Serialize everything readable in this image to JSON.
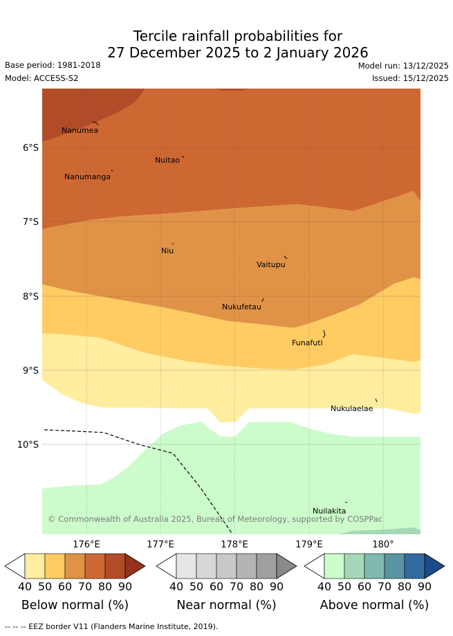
{
  "title": {
    "line1": "Tercile rainfall probabilities for",
    "line2": "27 December 2025 to 2 January 2026"
  },
  "meta": {
    "base_period": "Base period: 1981-2018",
    "model": "Model: ACCESS-S2",
    "model_run": "Model run: 13/12/2025",
    "issued": "Issued: 15/12/2025"
  },
  "map": {
    "lon_ticks": [
      "176°E",
      "177°E",
      "178°E",
      "179°E",
      "180°"
    ],
    "lat_ticks": [
      "6°S",
      "7°S",
      "8°S",
      "9°S",
      "10°S"
    ],
    "places": [
      {
        "name": "Nanumea"
      },
      {
        "name": "Nuitao"
      },
      {
        "name": "Nanumanga"
      },
      {
        "name": "Niu"
      },
      {
        "name": "Vaitupu"
      },
      {
        "name": "Nukufetau"
      },
      {
        "name": "Funafuti"
      },
      {
        "name": "Nukulaelae"
      },
      {
        "name": "Nuilakita"
      }
    ],
    "copyright": "© Commonwealth of Australia 2025, Bureau of Meteorology, supported by COSPPac"
  },
  "legends": [
    {
      "label": "Below normal (%)",
      "ticks": [
        "40",
        "50",
        "60",
        "70",
        "80",
        "90"
      ],
      "colors": [
        "#ffffff",
        "#ffeda0",
        "#fecc63",
        "#e09346",
        "#ce6833",
        "#b24b28",
        "#96321c"
      ]
    },
    {
      "label": "Near normal (%)",
      "ticks": [
        "40",
        "50",
        "60",
        "70",
        "80",
        "90"
      ],
      "colors": [
        "#ffffff",
        "#e6e6e6",
        "#d7d7d7",
        "#c8c8c8",
        "#b4b4b4",
        "#a0a0a0",
        "#8a8a8a"
      ]
    },
    {
      "label": "Above normal (%)",
      "ticks": [
        "40",
        "50",
        "60",
        "70",
        "80",
        "90"
      ],
      "colors": [
        "#ffffff",
        "#ccfccb",
        "#a6d8b8",
        "#80b9b0",
        "#5b94a3",
        "#336aa0",
        "#1a4b8a"
      ]
    }
  ],
  "footer": "--  --  -- EEZ border V11 (Flanders Marine Institute, 2019)."
}
